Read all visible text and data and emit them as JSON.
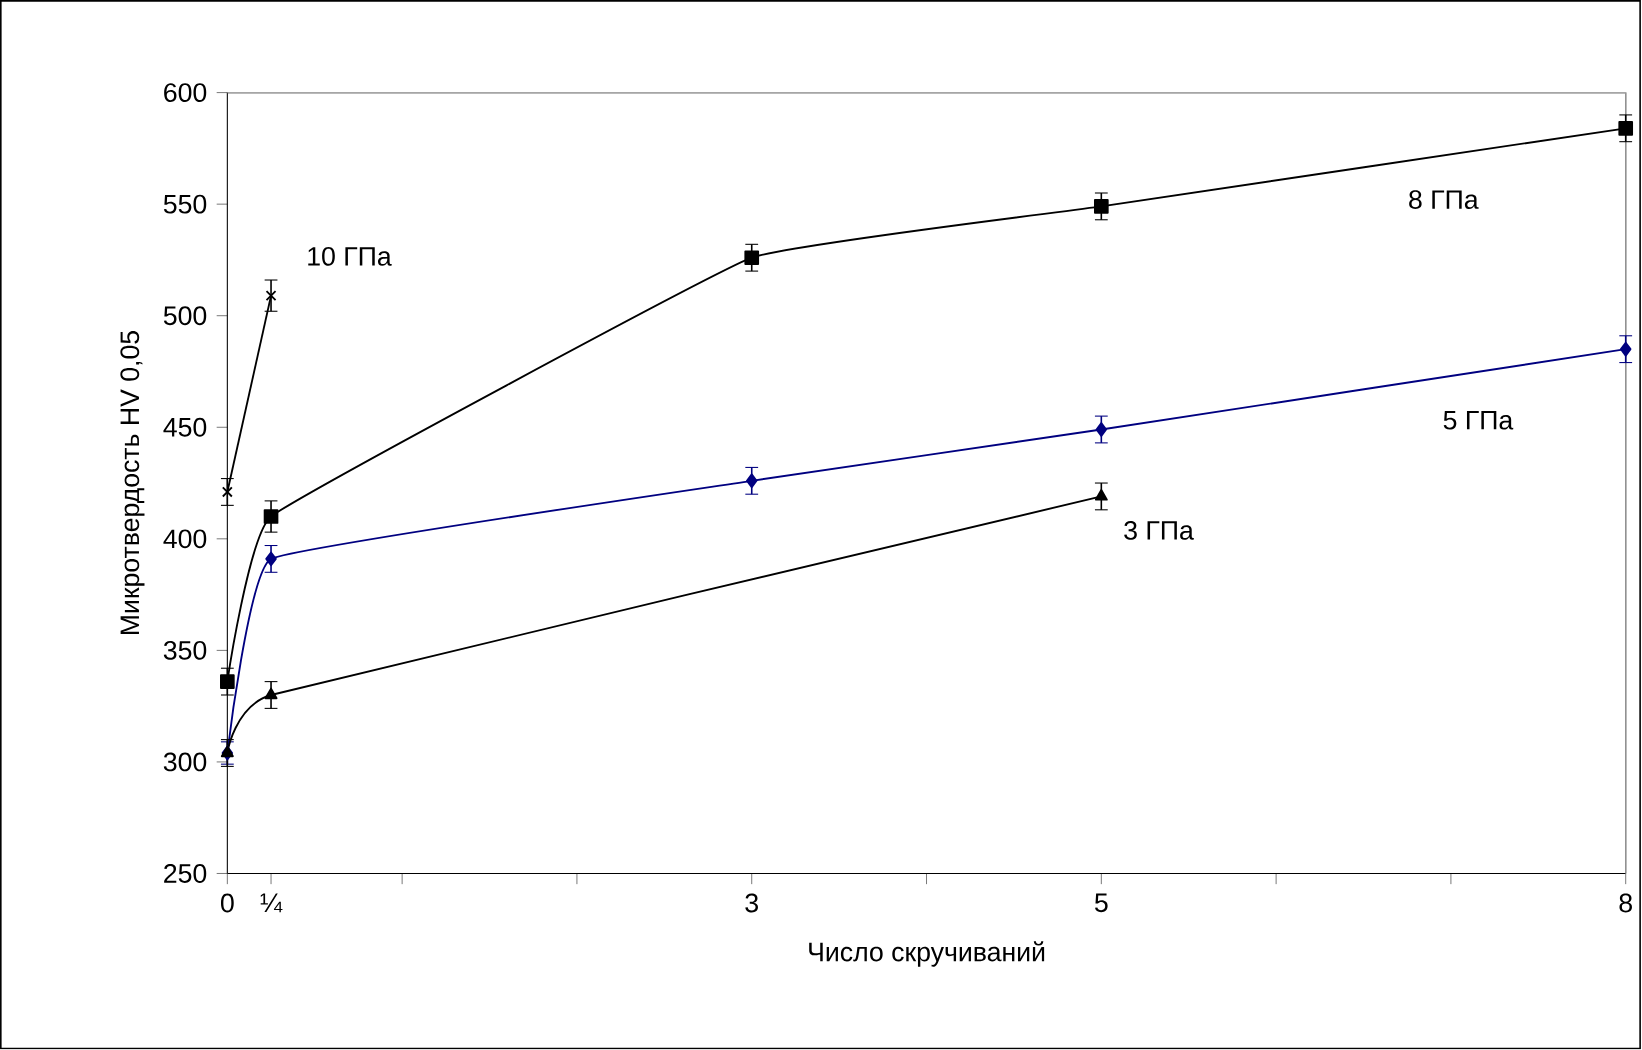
{
  "chart_data": {
    "type": "line",
    "xlabel": "Число скручиваний",
    "ylabel": "Микротвердость HV 0,05",
    "xlim": [
      0,
      8
    ],
    "ylim": [
      250,
      600
    ],
    "xticks": [
      0,
      {
        "value": 0.25,
        "label": "¼"
      },
      {
        "value": 1,
        "label": null
      },
      {
        "value": 2,
        "label": null
      },
      3,
      {
        "value": 4,
        "label": null
      },
      5,
      {
        "value": 6,
        "label": null
      },
      {
        "value": 7,
        "label": null
      },
      8
    ],
    "yticks": [
      250,
      300,
      350,
      400,
      450,
      500,
      550,
      600
    ],
    "grid": false,
    "legend": false,
    "line_style": "solid",
    "series": [
      {
        "name": "10 ГПа",
        "color": "#000000",
        "marker": "cross",
        "x": [
          0,
          0.25
        ],
        "values": [
          421,
          509
        ],
        "errors": [
          6,
          7
        ]
      },
      {
        "name": "8 ГПа",
        "color": "#000000",
        "marker": "square",
        "x": [
          0,
          0.25,
          3,
          5,
          8
        ],
        "values": [
          336,
          410,
          526,
          549,
          584
        ],
        "errors": [
          6,
          7,
          6,
          6,
          6
        ]
      },
      {
        "name": "5 ГПа",
        "color": "#000080",
        "marker": "diamond",
        "x": [
          0,
          0.25,
          3,
          5,
          8
        ],
        "values": [
          304,
          391,
          426,
          449,
          485
        ],
        "errors": [
          5,
          6,
          6,
          6,
          6
        ]
      },
      {
        "name": "3 ГПа",
        "color": "#000000",
        "marker": "triangle",
        "x": [
          0,
          0.25,
          5
        ],
        "values": [
          304,
          330,
          419
        ],
        "errors": [
          6,
          6,
          6
        ]
      }
    ]
  }
}
